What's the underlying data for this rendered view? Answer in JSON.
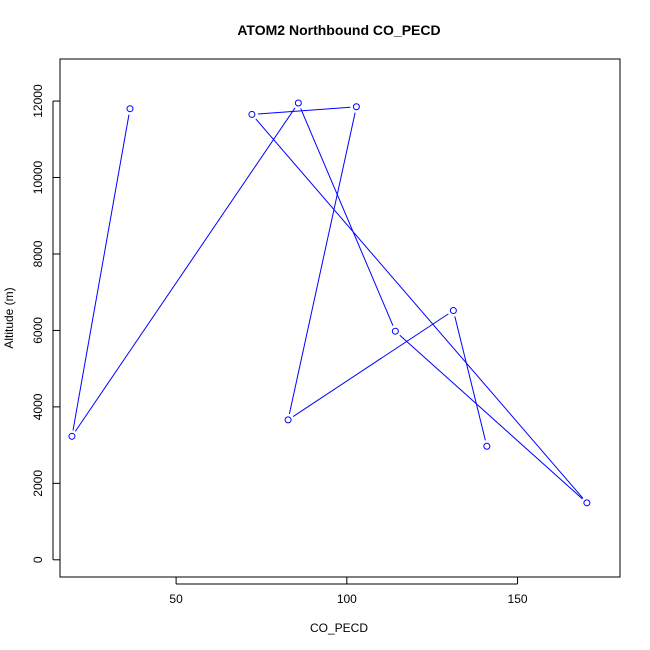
{
  "chart_data": {
    "type": "line",
    "title": "ATOM2 Northbound CO_PECD",
    "xlabel": "CO_PECD",
    "ylabel": "Altitude (m)",
    "xlim": [
      16,
      180
    ],
    "ylim": [
      -450,
      13100
    ],
    "x_ticks": [
      50,
      100,
      150
    ],
    "y_ticks": [
      0,
      2000,
      4000,
      6000,
      8000,
      10000,
      12000
    ],
    "x_tick_labels": [
      "50",
      "100",
      "150"
    ],
    "y_tick_labels": [
      "0",
      "2000",
      "4000",
      "6000",
      "8000",
      "10000",
      "12000"
    ],
    "grid": false,
    "series": [
      {
        "color": "#0000ff",
        "marker": "open-circle",
        "points": [
          {
            "x": 36.5,
            "y": 11800
          },
          {
            "x": 19.5,
            "y": 3230
          },
          {
            "x": 85.8,
            "y": 11950
          },
          {
            "x": 114.2,
            "y": 5980
          },
          {
            "x": 170.3,
            "y": 1490
          },
          {
            "x": 72.2,
            "y": 11650
          },
          {
            "x": 102.8,
            "y": 11850
          },
          {
            "x": 82.8,
            "y": 3660
          },
          {
            "x": 131.2,
            "y": 6520
          },
          {
            "x": 141.0,
            "y": 2970
          }
        ]
      }
    ]
  }
}
